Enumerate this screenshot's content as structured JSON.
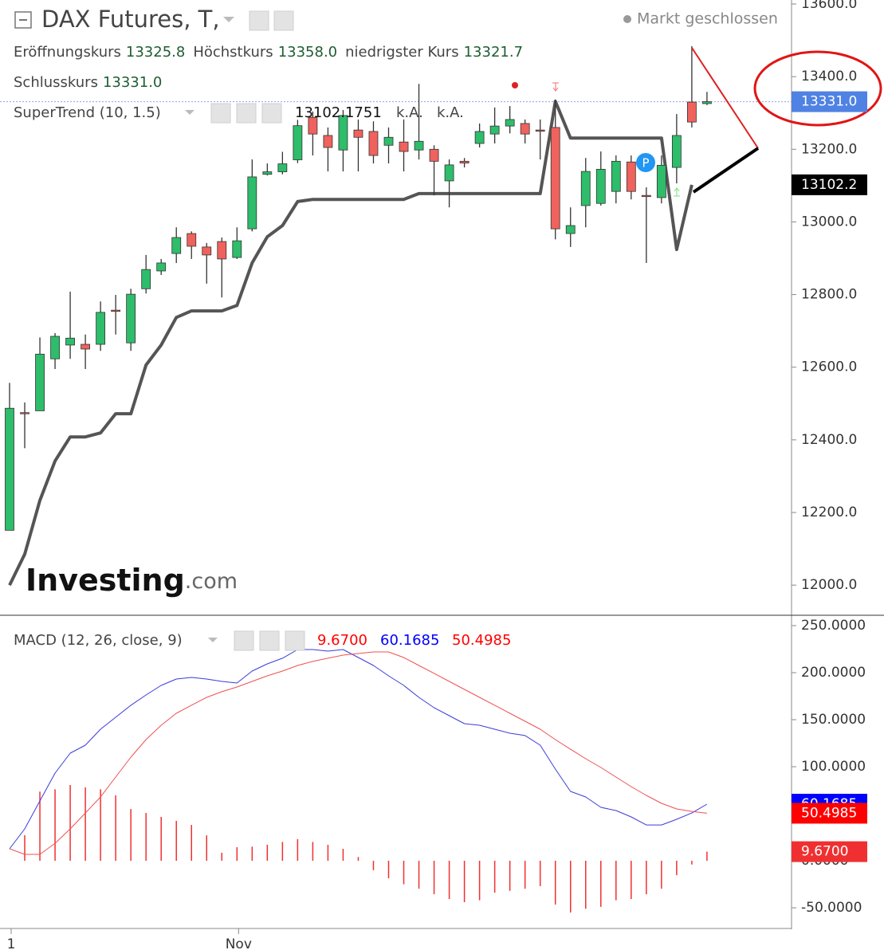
{
  "chart_data": [
    {
      "type": "candlestick",
      "title": "DAX Futures, T,",
      "status": "Markt geschlossen",
      "info": [
        {
          "label": "Eröffnungskurs",
          "value": "13325.8"
        },
        {
          "label": "Höchstkurs",
          "value": "13358.0"
        },
        {
          "label": "niedrigster Kurs",
          "value": "13321.7"
        },
        {
          "label": "Schlusskurs",
          "value": "13331.0"
        }
      ],
      "categories": [
        "1",
        null,
        null,
        null,
        null,
        null,
        null,
        null,
        null,
        null,
        null,
        null,
        null,
        null,
        null,
        "Nov",
        null,
        null,
        null,
        null,
        null,
        null,
        null,
        null,
        null,
        null,
        null,
        null,
        null,
        null,
        null,
        null,
        null,
        null,
        null,
        null,
        null,
        null,
        null,
        null,
        null,
        null,
        null,
        null,
        null,
        null,
        null
      ],
      "open": [
        12151,
        12475,
        12480,
        12623,
        12661,
        12663,
        12663,
        12757,
        12667,
        12816,
        12865,
        12913,
        12968,
        12931,
        12946,
        12902,
        12981,
        13131,
        13138,
        13171,
        13288,
        13238,
        13198,
        13253,
        13249,
        13211,
        13220,
        13198,
        13200,
        13113,
        13167,
        13216,
        13242,
        13264,
        13271,
        13253,
        13260,
        12968,
        13045,
        13051,
        13084,
        13165,
        13073,
        13067,
        13150,
        13330,
        13325.8
      ],
      "high": [
        12557,
        12503,
        12682,
        12694,
        12808,
        12690,
        12781,
        12799,
        12816,
        12909,
        12898,
        12985,
        12974,
        12942,
        12957,
        12985,
        13172,
        13161,
        13193,
        13281,
        13304,
        13260,
        13308,
        13282,
        13277,
        13260,
        13282,
        13380,
        13211,
        13172,
        13176,
        13271,
        13315,
        13319,
        13282,
        13282,
        13337,
        13040,
        13176,
        13194,
        13183,
        13183,
        13095,
        13183,
        13297,
        13484,
        13358
      ],
      "low": [
        12151,
        12377,
        12480,
        12595,
        12623,
        12595,
        12645,
        12690,
        12645,
        12803,
        12854,
        12887,
        12898,
        12830,
        12792,
        12898,
        12974,
        13128,
        13131,
        13162,
        13183,
        13139,
        13139,
        13139,
        13161,
        13161,
        13139,
        13172,
        13073,
        13040,
        13150,
        13205,
        13216,
        13244,
        13216,
        13172,
        12952,
        12931,
        12985,
        13045,
        13051,
        13062,
        12887,
        13051,
        13106,
        13260,
        13321.7
      ],
      "close": [
        12487,
        12472,
        12636,
        12685,
        12680,
        12650,
        12751,
        12755,
        12801,
        12869,
        12887,
        12957,
        12933,
        12909,
        12898,
        12948,
        13124,
        13138,
        13160,
        13265,
        13242,
        13205,
        13293,
        13233,
        13183,
        13233,
        13194,
        13222,
        13167,
        13157,
        13162,
        13249,
        13264,
        13282,
        13242,
        13251,
        12981,
        12990,
        13139,
        13145,
        13167,
        13084,
        13071,
        13156,
        13238,
        13275,
        13331
      ],
      "up_color": "#2ebd6b",
      "down_color": "#f0625d",
      "series": [
        {
          "name": "SuperTrend (10, 1.5)",
          "color": "#555555",
          "values": [
            12000,
            12085,
            12233,
            12342,
            12408,
            12408,
            12419,
            12472,
            12472,
            12606,
            12661,
            12737,
            12755,
            12755,
            12755,
            12770,
            12887,
            12959,
            12990,
            13056,
            13062,
            13062,
            13062,
            13062,
            13062,
            13062,
            13062,
            13078,
            13078,
            13078,
            13078,
            13078,
            13078,
            13078,
            13078,
            13078,
            13332,
            13231,
            13231,
            13231,
            13231,
            13231,
            13231,
            13231,
            12924,
            13102.1751,
            null
          ],
          "legend_values": [
            "13102.1751",
            "k.A.",
            "k.A."
          ],
          "badge": {
            "value": 13102.2,
            "label": "13102.2"
          }
        }
      ],
      "ylim": [
        11917,
        13611
      ],
      "yticks": [
        {
          "value": 12000,
          "label": "12000.0"
        },
        {
          "value": 12200,
          "label": "12200.0"
        },
        {
          "value": 12400,
          "label": "12400.0"
        },
        {
          "value": 12600,
          "label": "12600.0"
        },
        {
          "value": 12800,
          "label": "12800.0"
        },
        {
          "value": 13000,
          "label": "13000.0"
        },
        {
          "value": 13200,
          "label": "13200.0"
        },
        {
          "value": 13400,
          "label": "13400.0"
        },
        {
          "value": 13600,
          "label": "13600.0"
        }
      ],
      "marker_label": "P",
      "watermark": "Investing",
      "watermark_suffix": ".com"
    },
    {
      "type": "macd",
      "title": "MACD (12, 26, close, 9)",
      "series": [
        {
          "style": "histogram",
          "color": "#f03030",
          "value_label": "9.6700",
          "values": [
            0,
            27.1,
            73.5,
            76,
            80.5,
            78,
            76,
            69.5,
            55,
            50.8,
            46.6,
            42.4,
            38.1,
            27,
            8.5,
            14.4,
            15,
            17,
            20,
            23,
            20,
            17,
            12.7,
            4,
            -10,
            -18.6,
            -25,
            -29.7,
            -35.6,
            -40.7,
            -44,
            -42,
            -33.9,
            -32,
            -29.7,
            -27,
            -46.6,
            -55,
            -51,
            -49,
            -42,
            -40.7,
            -35.6,
            -29.7,
            -15.3,
            -4,
            9.67
          ]
        },
        {
          "style": "line",
          "color": "#3b3bdc",
          "badge_color": "#0000ff",
          "value_label": "60.1685",
          "values": [
            12.7,
            33.9,
            63.6,
            93.2,
            114.4,
            122.9,
            139.8,
            152.5,
            165.3,
            176.3,
            186.4,
            193.2,
            194.9,
            193.2,
            190.7,
            189.0,
            201.7,
            209.3,
            215.3,
            224.6,
            224.6,
            222.9,
            224.6,
            216.1,
            207.6,
            196.6,
            186.4,
            173.7,
            162.7,
            154.2,
            145.8,
            144.1,
            139.8,
            135.6,
            133.1,
            122.9,
            97.5,
            73.7,
            67.8,
            56.8,
            53.4,
            46.6,
            38.1,
            38.1,
            44.1,
            50.8,
            60.1685
          ]
        },
        {
          "style": "line",
          "color": "#f05050",
          "badge_color": "#ff0000",
          "value_label": "50.4985",
          "values": [
            12.7,
            6.8,
            6.8,
            18.6,
            33.9,
            50.8,
            67.8,
            89.0,
            110.2,
            128.8,
            144.1,
            156.8,
            165.3,
            173.7,
            179.7,
            184.7,
            190.7,
            196.6,
            201.7,
            207.6,
            211.9,
            215.3,
            218.6,
            220.3,
            222.0,
            222.0,
            216.1,
            207.6,
            199.2,
            190.7,
            182.2,
            173.7,
            165.3,
            156.8,
            148.3,
            139.8,
            128.8,
            118.6,
            108.5,
            99.2,
            89.0,
            78.8,
            69.5,
            61.0,
            55.1,
            52.5,
            50.4985
          ]
        }
      ],
      "ylim": [
        -72,
        261
      ],
      "yticks": [
        {
          "value": -50,
          "label": "-50.0000"
        },
        {
          "value": 0,
          "label": "0.0000"
        },
        {
          "value": 50,
          "label": "50.0000"
        },
        {
          "value": 100,
          "label": "100.0000"
        },
        {
          "value": 150,
          "label": "150.0000"
        },
        {
          "value": 200,
          "label": "200.0000"
        },
        {
          "value": 250,
          "label": "250.0000"
        }
      ]
    }
  ]
}
